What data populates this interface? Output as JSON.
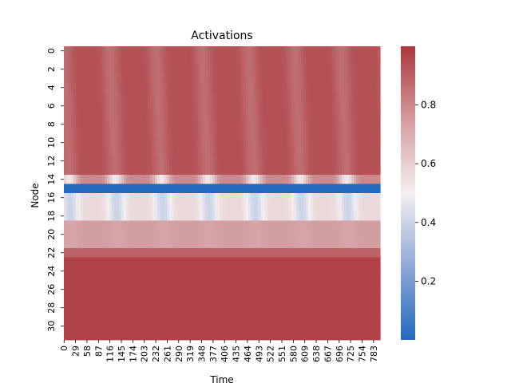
{
  "chart_data": {
    "type": "heatmap",
    "title": "Activations",
    "xlabel": "Time",
    "ylabel": "Node",
    "n_rows": 32,
    "n_cols": 800,
    "x_tick_labels": [
      "0",
      "29",
      "58",
      "87",
      "116",
      "145",
      "174",
      "203",
      "232",
      "261",
      "290",
      "319",
      "348",
      "377",
      "406",
      "435",
      "464",
      "493",
      "522",
      "551",
      "580",
      "609",
      "638",
      "667",
      "696",
      "725",
      "754",
      "783"
    ],
    "y_tick_labels": [
      "0",
      "2",
      "4",
      "6",
      "8",
      "10",
      "12",
      "14",
      "16",
      "18",
      "20",
      "22",
      "24",
      "26",
      "28",
      "30"
    ],
    "colorbar": {
      "vmin": 0.0,
      "vmax": 1.0,
      "ticks": [
        "0.2",
        "0.4",
        "0.6",
        "0.8"
      ],
      "tick_values": [
        0.2,
        0.4,
        0.6,
        0.8
      ]
    },
    "colormap": "vlag",
    "colors": {
      "low": "#2369bd",
      "mid": "#f4eff0",
      "high": "#a9373b"
    },
    "periodicity": {
      "period": 117,
      "phases": [
        8,
        18,
        30,
        42,
        54,
        68,
        80,
        92,
        104,
        116,
        128,
        140,
        152,
        164,
        176,
        188,
        200,
        212,
        224,
        236,
        248,
        260,
        272,
        284,
        296,
        308,
        320,
        332,
        344,
        356,
        368,
        380
      ],
      "oscillating_dip_centers": [
        116,
        233,
        350,
        467,
        584,
        701
      ]
    },
    "row_profiles": [
      {
        "rows": [
          0,
          13
        ],
        "base": 0.93,
        "dip": 0.08
      },
      {
        "rows": [
          14,
          14
        ],
        "base": 0.78,
        "dip": 0.26
      },
      {
        "rows": [
          15,
          15
        ],
        "base": 0.0,
        "dip": 0.0
      },
      {
        "rows": [
          16,
          18
        ],
        "base": 0.56,
        "dip": 0.16
      },
      {
        "rows": [
          19,
          21
        ],
        "base": 0.72,
        "dip": 0.02
      },
      {
        "rows": [
          22,
          22
        ],
        "base": 0.88,
        "dip": 0.0
      },
      {
        "rows": [
          23,
          31
        ],
        "base": 0.97,
        "dip": 0.0
      }
    ]
  }
}
